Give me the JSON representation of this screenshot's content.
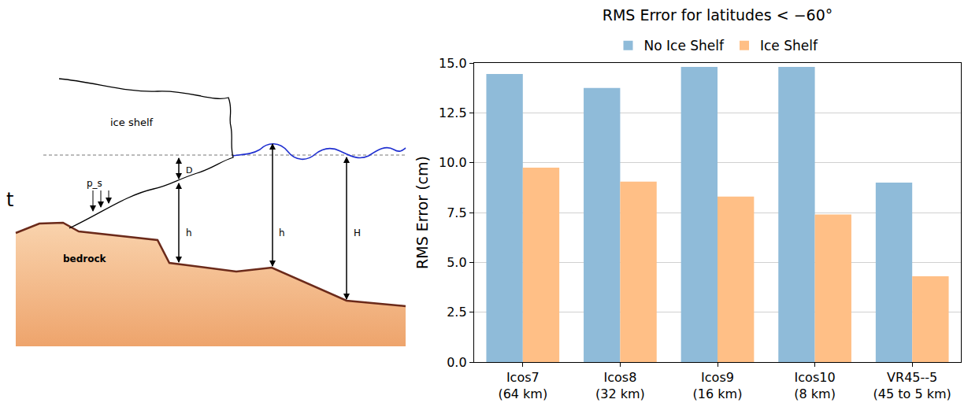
{
  "chart_data": {
    "type": "bar",
    "title": "RMS Error for latitudes < −60°",
    "y_label": "RMS Error (cm)",
    "categories": [
      "Icos7\n(64 km)",
      "Icos8\n(32 km)",
      "Icos9\n(16 km)",
      "Icos10\n(8 km)",
      "VR45--5\n(45 to 5 km)"
    ],
    "series": [
      {
        "name": "No Ice Shelf",
        "color": "#8fbbd9",
        "values": [
          14.45,
          13.75,
          14.8,
          14.8,
          9.0
        ]
      },
      {
        "name": "Ice Shelf",
        "color": "#ffbf86",
        "values": [
          9.75,
          9.05,
          8.3,
          7.4,
          4.3
        ]
      }
    ],
    "ylim": [
      0,
      15
    ],
    "yticks": [
      {
        "value": 0,
        "label": "0.0"
      },
      {
        "value": 2.5,
        "label": "2.5"
      },
      {
        "value": 5,
        "label": "5.0"
      },
      {
        "value": 7.5,
        "label": "7.5"
      },
      {
        "value": 10,
        "label": "10.0"
      },
      {
        "value": 12.5,
        "label": "12.5"
      },
      {
        "value": 15,
        "label": "15.0"
      }
    ],
    "grid": true,
    "legend": "top"
  },
  "diagram": {
    "texts": {
      "ice_shelf": "ice shelf",
      "p_s": "p_s",
      "D": "D",
      "h_left": "h",
      "h_mid": "h",
      "H": "H",
      "bedrock": "bedrock",
      "edge": "t"
    }
  }
}
